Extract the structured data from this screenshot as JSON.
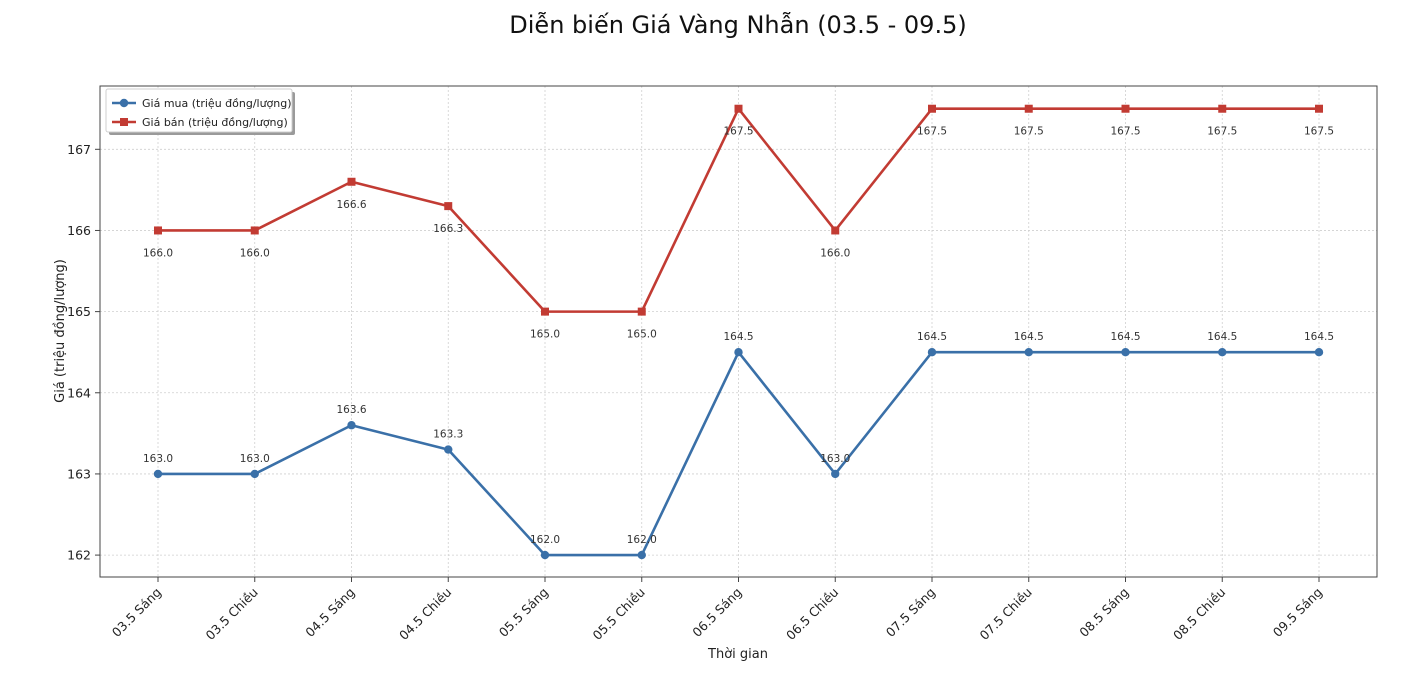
{
  "chart_data": {
    "type": "line",
    "title": "Diễn biến Giá Vàng Nhẫn (03.5 - 09.5)",
    "xlabel": "Thời gian",
    "ylabel": "Giá (triệu đồng/lượng)",
    "categories": [
      "03.5 Sáng",
      "03.5 Chiều",
      "04.5 Sáng",
      "04.5 Chiều",
      "05.5 Sáng",
      "05.5 Chiều",
      "06.5 Sáng",
      "06.5 Chiều",
      "07.5 Sáng",
      "07.5 Chiều",
      "08.5 Sáng",
      "08.5 Chiều",
      "09.5 Sáng"
    ],
    "series": [
      {
        "name": "Giá mua (triệu đồng/lượng)",
        "color": "#3a70a8",
        "marker": "circle",
        "values": [
          163.0,
          163.0,
          163.6,
          163.3,
          162.0,
          162.0,
          164.5,
          163.0,
          164.5,
          164.5,
          164.5,
          164.5,
          164.5
        ],
        "labels": [
          "163.0",
          "163.0",
          "163.6",
          "163.3",
          "162.0",
          "162.0",
          "164.5",
          "163.0",
          "164.5",
          "164.5",
          "164.5",
          "164.5",
          "164.5"
        ],
        "label_position": "above"
      },
      {
        "name": "Giá bán (triệu đồng/lượng)",
        "color": "#c23b33",
        "marker": "square",
        "values": [
          166.0,
          166.0,
          166.6,
          166.3,
          165.0,
          165.0,
          167.5,
          166.0,
          167.5,
          167.5,
          167.5,
          167.5,
          167.5
        ],
        "labels": [
          "166.0",
          "166.0",
          "166.6",
          "166.3",
          "165.0",
          "165.0",
          "167.5",
          "166.0",
          "167.5",
          "167.5",
          "167.5",
          "167.5",
          "167.5"
        ],
        "label_position": "below"
      }
    ],
    "yticks": [
      162,
      163,
      164,
      165,
      166,
      167
    ],
    "ytick_labels": [
      "162",
      "163",
      "164",
      "165",
      "166",
      "167"
    ],
    "ylim": [
      161.73,
      167.78
    ],
    "grid": true,
    "legend_position": "upper-left"
  }
}
